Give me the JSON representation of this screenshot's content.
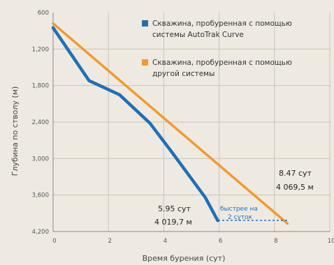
{
  "chart_data": {
    "type": "line",
    "xlabel": "Время бурения (сут)",
    "ylabel": "Глубина по стволу (м)",
    "xlim": [
      0,
      10
    ],
    "ylim": [
      600,
      4200
    ],
    "y_inverted": true,
    "grid": true,
    "xticks": [
      "0",
      "2",
      "4",
      "6",
      "8",
      "10"
    ],
    "yticks": [
      "600",
      "1,200",
      "1,800",
      "2,400",
      "3,000",
      "3,600",
      "4,200"
    ],
    "legend_position": "top-right",
    "series": [
      {
        "name": "Скважина, пробуренная с помощью системы AutoTrak Curve",
        "name_lines": [
          "Скважина, пробуренная с помощью",
          "системы AutoTrak Curve"
        ],
        "color": "#1f6fb6",
        "x": [
          0,
          1.3,
          2.4,
          3.5,
          4.3,
          5.5,
          5.95
        ],
        "y": [
          850,
          1720,
          1950,
          2420,
          2900,
          3640,
          4019.7
        ]
      },
      {
        "name": "Скважина, пробуренная с помощью другой системы",
        "name_lines": [
          "Скважина, пробуренная с помощью",
          "другой системы"
        ],
        "color": "#f39a2c",
        "x": [
          0,
          8.47
        ],
        "y": [
          780,
          4069.5
        ]
      }
    ],
    "annotations": {
      "blue_end_days": "5.95 сут",
      "blue_end_depth": "4 019,7 м",
      "orange_end_days": "8.47 сут",
      "orange_end_depth": "4 069,5 м",
      "faster_line1": "быстрее на",
      "faster_line2": "2 суток"
    }
  }
}
